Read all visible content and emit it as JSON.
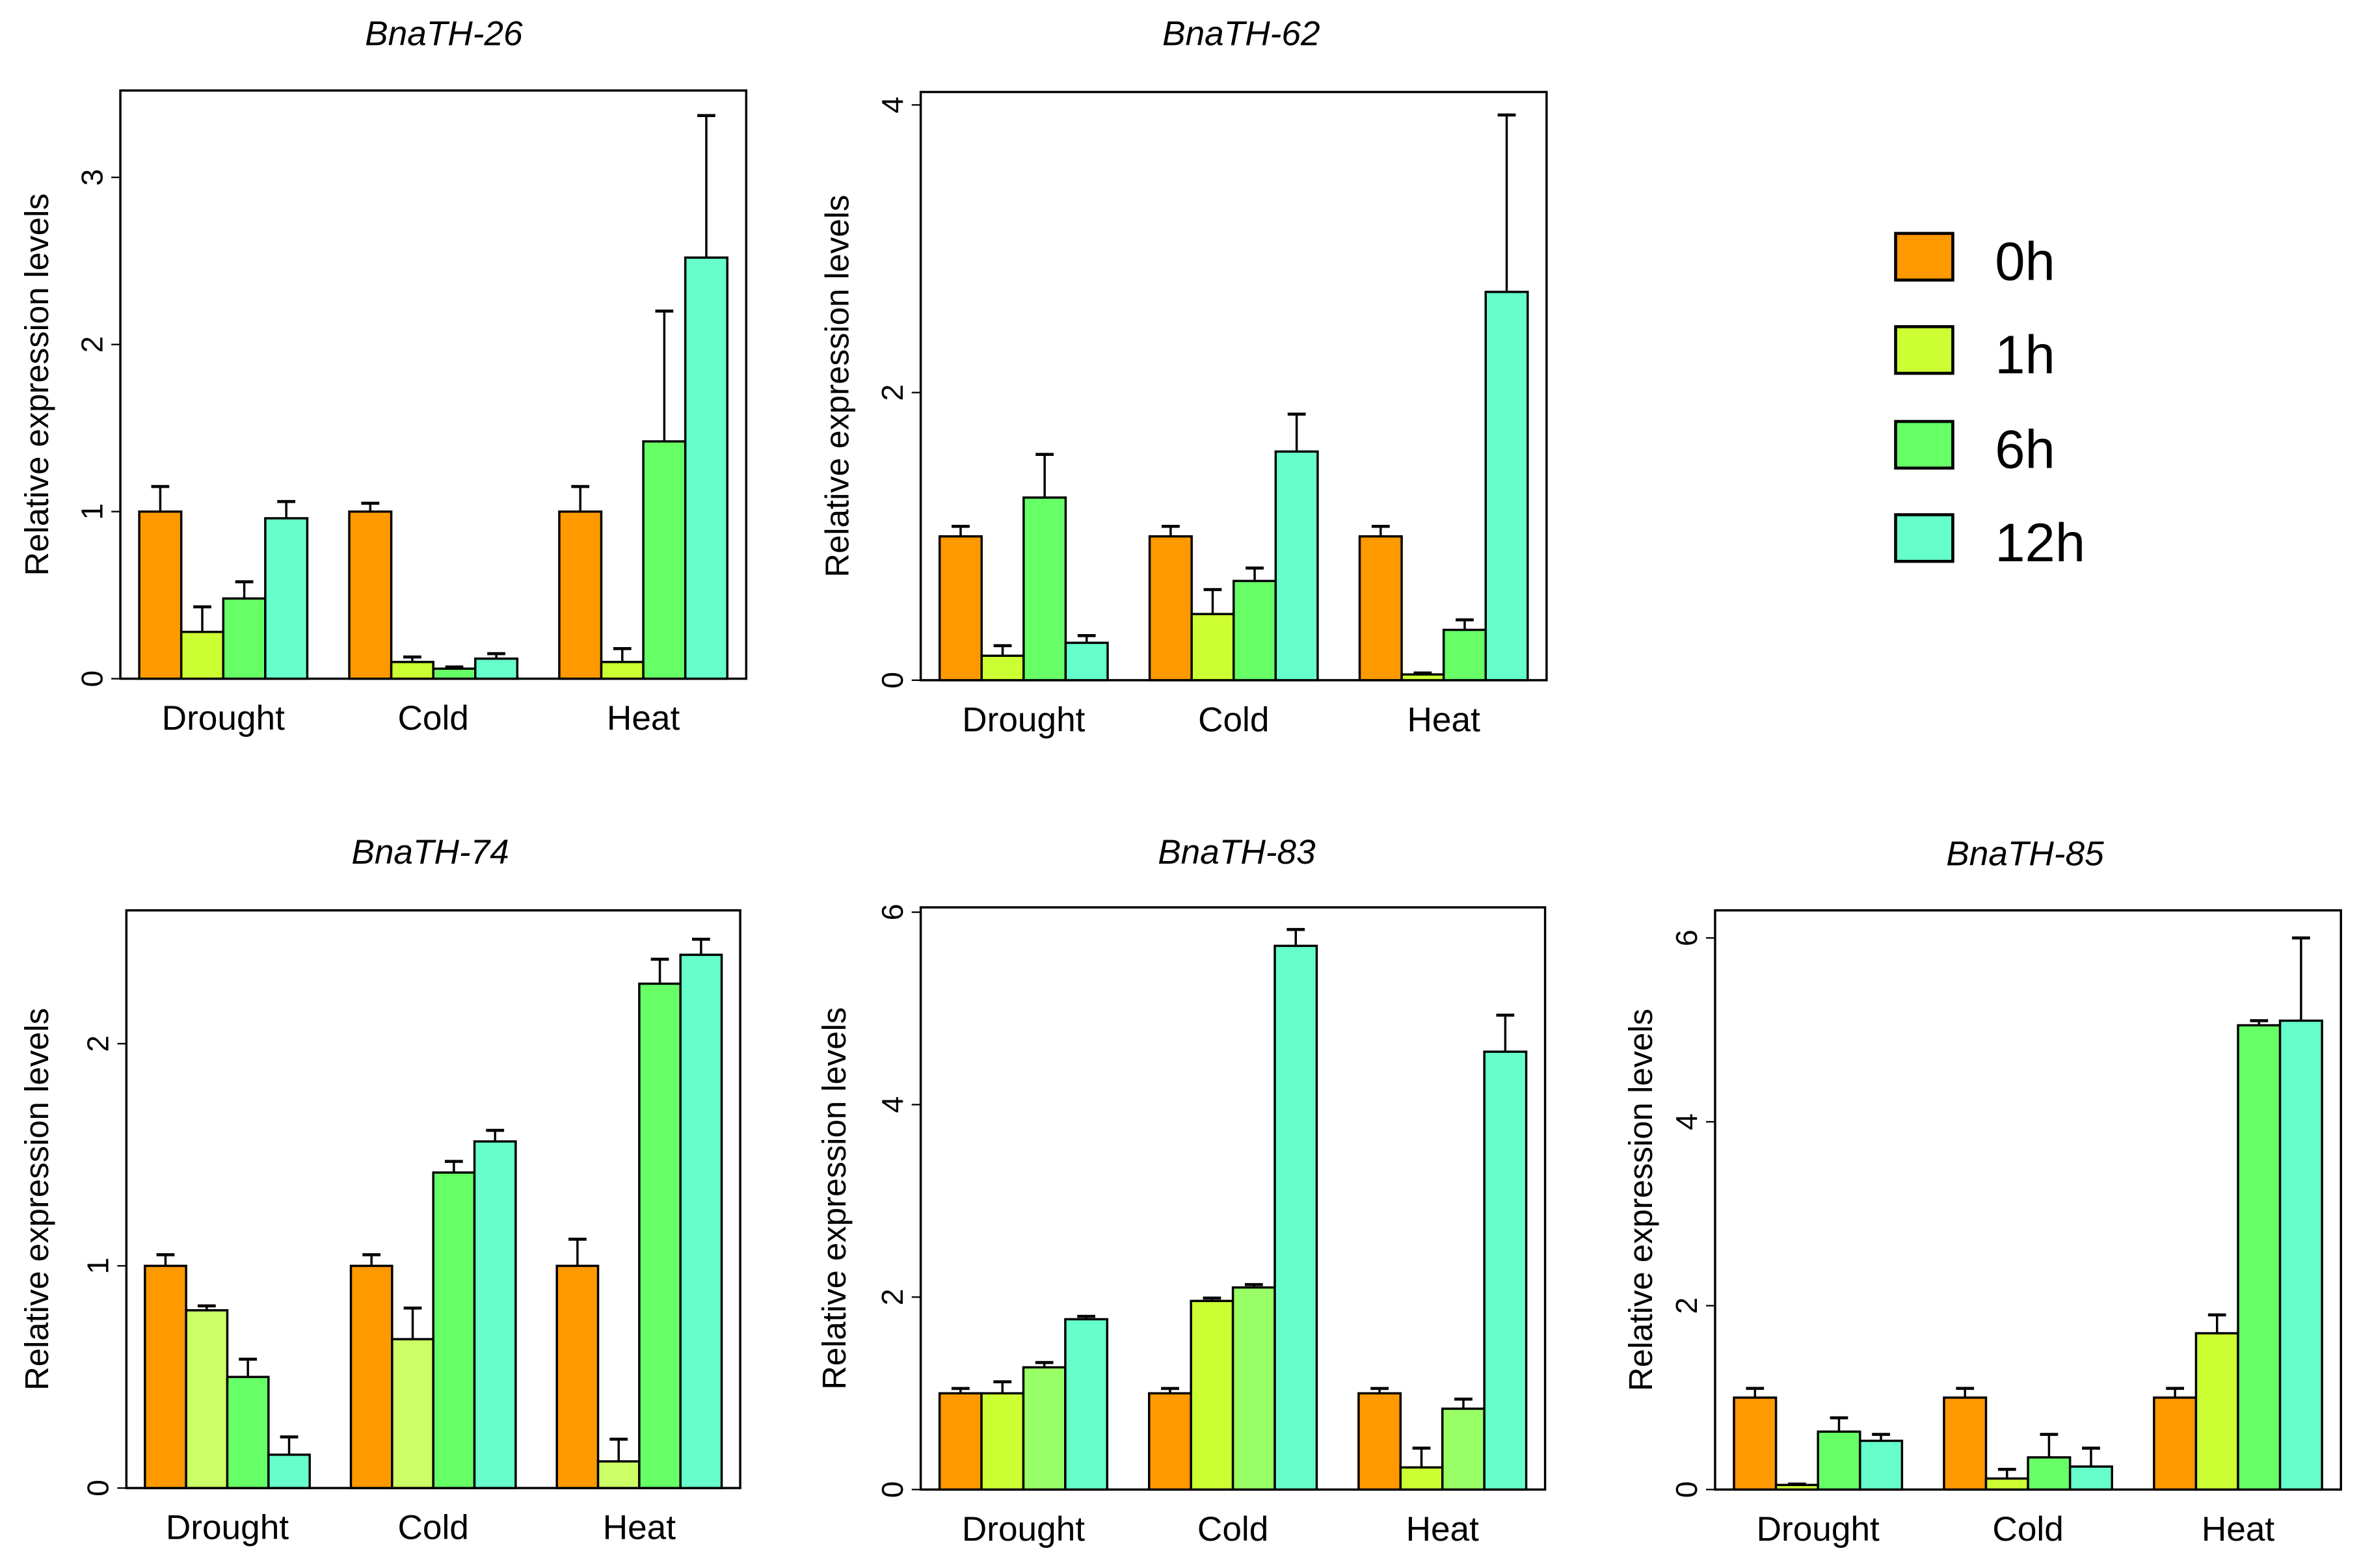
{
  "chart_data": [
    {
      "type": "bar",
      "title": "BnaTH-26",
      "ylabel": "Relative expression levels",
      "ylim": [
        0,
        3.52
      ],
      "yticks": [
        0,
        1,
        2,
        3
      ],
      "categories": [
        "Drought",
        "Cold",
        "Heat"
      ],
      "colors": [
        "#FF9900",
        "#CCFF33",
        "#66FF66",
        "#66FFCC"
      ],
      "series": [
        {
          "name": "0h",
          "values": [
            1.0,
            1.0,
            1.0
          ],
          "errors": [
            0.15,
            0.05,
            0.15
          ]
        },
        {
          "name": "1h",
          "values": [
            0.28,
            0.1,
            0.1
          ],
          "errors": [
            0.15,
            0.03,
            0.08
          ]
        },
        {
          "name": "6h",
          "values": [
            0.48,
            0.06,
            1.42
          ],
          "errors": [
            0.1,
            0.01,
            0.78
          ]
        },
        {
          "name": "12h",
          "values": [
            0.96,
            0.12,
            2.52
          ],
          "errors": [
            0.1,
            0.03,
            0.85
          ]
        }
      ]
    },
    {
      "type": "bar",
      "title": "BnaTH-62",
      "ylabel": "Relative expression levels",
      "ylim": [
        0,
        4.09
      ],
      "yticks": [
        0,
        2,
        4
      ],
      "categories": [
        "Drought",
        "Cold",
        "Heat"
      ],
      "colors": [
        "#FF9900",
        "#CCFF33",
        "#66FF66",
        "#66FFCC"
      ],
      "series": [
        {
          "name": "0h",
          "values": [
            1.0,
            1.0,
            1.0
          ],
          "errors": [
            0.07,
            0.07,
            0.07
          ]
        },
        {
          "name": "1h",
          "values": [
            0.17,
            0.46,
            0.04
          ],
          "errors": [
            0.07,
            0.17,
            0.01
          ]
        },
        {
          "name": "6h",
          "values": [
            1.27,
            0.69,
            0.35
          ],
          "errors": [
            0.3,
            0.09,
            0.07
          ]
        },
        {
          "name": "12h",
          "values": [
            0.26,
            1.59,
            2.7
          ],
          "errors": [
            0.05,
            0.26,
            1.23
          ]
        }
      ]
    },
    {
      "type": "bar",
      "title": "BnaTH-74",
      "ylabel": "Relative expression levels",
      "ylim": [
        0,
        2.6
      ],
      "yticks": [
        0,
        1,
        2
      ],
      "categories": [
        "Drought",
        "Cold",
        "Heat"
      ],
      "colors": [
        "#FF9900",
        "#CCFF66",
        "#66FF66",
        "#66FFCC"
      ],
      "series": [
        {
          "name": "0h",
          "values": [
            1.0,
            1.0,
            1.0
          ],
          "errors": [
            0.05,
            0.05,
            0.12
          ]
        },
        {
          "name": "1h",
          "values": [
            0.8,
            0.67,
            0.12
          ],
          "errors": [
            0.02,
            0.14,
            0.1
          ]
        },
        {
          "name": "6h",
          "values": [
            0.5,
            1.42,
            2.27
          ],
          "errors": [
            0.08,
            0.05,
            0.11
          ]
        },
        {
          "name": "12h",
          "values": [
            0.15,
            1.56,
            2.4
          ],
          "errors": [
            0.08,
            0.05,
            0.07
          ]
        }
      ]
    },
    {
      "type": "bar",
      "title": "BnaTH-83",
      "ylabel": "Relative expression levels",
      "ylim": [
        0,
        6.05
      ],
      "yticks": [
        0,
        2,
        4,
        6
      ],
      "categories": [
        "Drought",
        "Cold",
        "Heat"
      ],
      "colors": [
        "#FF9900",
        "#CCFF33",
        "#99FF66",
        "#66FFCC"
      ],
      "series": [
        {
          "name": "0h",
          "values": [
            1.0,
            1.0,
            1.0
          ],
          "errors": [
            0.05,
            0.05,
            0.05
          ]
        },
        {
          "name": "1h",
          "values": [
            1.0,
            1.96,
            0.23
          ],
          "errors": [
            0.12,
            0.03,
            0.2
          ]
        },
        {
          "name": "6h",
          "values": [
            1.27,
            2.1,
            0.84
          ],
          "errors": [
            0.05,
            0.03,
            0.1
          ]
        },
        {
          "name": "12h",
          "values": [
            1.77,
            5.65,
            4.55
          ],
          "errors": [
            0.03,
            0.17,
            0.38
          ]
        }
      ]
    },
    {
      "type": "bar",
      "title": "BnaTH-85",
      "ylabel": "Relative expression levels",
      "ylim": [
        0,
        6.3
      ],
      "yticks": [
        0,
        2,
        4,
        6
      ],
      "categories": [
        "Drought",
        "Cold",
        "Heat"
      ],
      "colors": [
        "#FF9900",
        "#CCFF33",
        "#66FF66",
        "#66FFCC"
      ],
      "series": [
        {
          "name": "0h",
          "values": [
            1.0,
            1.0,
            1.0
          ],
          "errors": [
            0.1,
            0.1,
            0.1
          ]
        },
        {
          "name": "1h",
          "values": [
            0.05,
            0.12,
            1.7
          ],
          "errors": [
            0.01,
            0.1,
            0.2
          ]
        },
        {
          "name": "6h",
          "values": [
            0.63,
            0.35,
            5.05
          ],
          "errors": [
            0.15,
            0.25,
            0.05
          ]
        },
        {
          "name": "12h",
          "values": [
            0.53,
            0.25,
            5.1
          ],
          "errors": [
            0.07,
            0.2,
            0.9
          ]
        }
      ]
    }
  ],
  "legend": {
    "entries": [
      {
        "label": "0h",
        "color": "#FF9900"
      },
      {
        "label": "1h",
        "color": "#CCFF33"
      },
      {
        "label": "6h",
        "color": "#66FF66"
      },
      {
        "label": "12h",
        "color": "#66FFCC"
      }
    ]
  }
}
